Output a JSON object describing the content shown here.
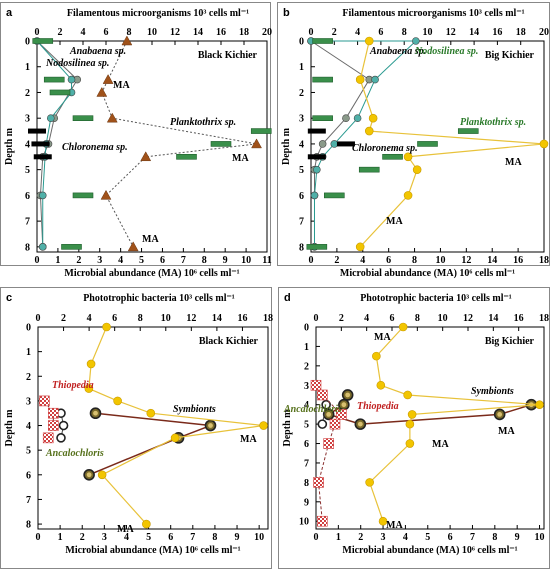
{
  "colors": {
    "filament_bar": "#3a8f4a",
    "filament_bar_edge": "#1f5e2c",
    "black_bar": "#000000",
    "ma_triangle": "#a0521a",
    "ma_dot": "#f2c500",
    "ma_line": "#e8c23a",
    "anab_fill": "#8a9a8a",
    "anab_line": "#6a6a6a",
    "nodo_fill": "#4fb0a8",
    "nodo_line": "#2a9a90",
    "symb_line": "#7a2a1a",
    "symb_fill": "#7a6a2a",
    "anca_fill": "#ffffff",
    "anca_edge": "#55701a",
    "thio_fill": "#f2b6b6",
    "thio_edge": "#d04040",
    "green_text": "#2a7a2a",
    "red_text": "#c02020"
  },
  "panels": [
    {
      "letter": "a",
      "header": "Filamentous microorganisms 10³ cells ml⁻¹",
      "lake": "Black Kichier",
      "top_ticks": [
        "0",
        "2",
        "4",
        "6",
        "8",
        "10",
        "12",
        "14",
        "16",
        "18",
        "20"
      ],
      "bottom_ticks": [
        "0",
        "1",
        "2",
        "3",
        "4",
        "5",
        "6",
        "7",
        "8",
        "9",
        "10",
        "11"
      ],
      "bottom_label": "Microbial abundance (MA) 10⁶ cells ml⁻¹",
      "y_ticks": [
        "0",
        "1",
        "2",
        "3",
        "4",
        "5",
        "6",
        "7",
        "8"
      ],
      "y_label": "Depth m",
      "labels": {
        "anabaena": "Anabaena sp.",
        "nodosilinea": "Nodosilinea sp.",
        "planktothrix": "Planktothrix sp.",
        "chloronema": "Chloronema sp.",
        "ma1": "MA",
        "ma2": "MA",
        "ma3": "MA"
      }
    },
    {
      "letter": "b",
      "header": "Filamentous microorganisms 10³ cells ml⁻¹",
      "lake": "Big Kichier",
      "top_ticks": [
        "0",
        "2",
        "4",
        "6",
        "8",
        "10",
        "12",
        "14",
        "16",
        "18",
        "20"
      ],
      "bottom_ticks": [
        "0",
        "2",
        "4",
        "6",
        "8",
        "10",
        "12",
        "14",
        "16",
        "18"
      ],
      "bottom_label": "Microbial abundance (MA) 10⁶ cells ml⁻¹",
      "y_ticks": [
        "0",
        "1",
        "2",
        "3",
        "4",
        "5",
        "6",
        "7",
        "8"
      ],
      "y_label": "Depth m",
      "labels": {
        "anabaena": "Anabaena sp.",
        "nodosilinea": "Nodosilinea sp.",
        "planktothrix": "Planktothrix sp.",
        "chloronema": "Chloronema sp.",
        "ma1": "MA",
        "ma2": "MA"
      }
    },
    {
      "letter": "c",
      "header": "Phototrophic bacteria 10³ cells ml⁻¹",
      "lake": "Black Kichier",
      "top_ticks": [
        "0",
        "2",
        "4",
        "6",
        "8",
        "10",
        "12",
        "14",
        "16",
        "18"
      ],
      "bottom_ticks": [
        "0",
        "1",
        "2",
        "3",
        "4",
        "5",
        "6",
        "7",
        "8",
        "9",
        "10"
      ],
      "bottom_label": "Microbial abundance (MA) 10⁶ cells ml⁻¹",
      "y_ticks": [
        "0",
        "1",
        "2",
        "3",
        "4",
        "5",
        "6",
        "7",
        "8"
      ],
      "y_label": "Depth m",
      "labels": {
        "thiopedia": "Thiopedia",
        "symbionts": "Symbionts",
        "ancalochloris": "Ancalochloris",
        "ma1": "MA",
        "ma2": "MA"
      }
    },
    {
      "letter": "d",
      "header": "Phototrophic bacteria 10³ cells ml⁻¹",
      "lake": "Big Kichier",
      "top_ticks": [
        "0",
        "2",
        "4",
        "6",
        "8",
        "10",
        "12",
        "14",
        "16",
        "18"
      ],
      "bottom_ticks": [
        "0",
        "1",
        "2",
        "3",
        "4",
        "5",
        "6",
        "7",
        "8",
        "9",
        "10"
      ],
      "bottom_label": "Microbial abundance (MA) 10⁶ cells ml⁻¹",
      "y_ticks": [
        "0",
        "1",
        "2",
        "3",
        "4",
        "5",
        "6",
        "7",
        "8",
        "9",
        "10"
      ],
      "y_label": "Depth m",
      "labels": {
        "thiopedia": "Thiopedia",
        "symbionts": "Symbionts",
        "ancalochloris": "Ancalochloris",
        "ma1": "MA",
        "ma2": "MA",
        "ma3": "MA"
      }
    }
  ],
  "chart_data": [
    {
      "panel": "a",
      "type": "line",
      "ylim": [
        0,
        8.2
      ],
      "top_xlim": [
        0,
        20
      ],
      "bottom_xlim": [
        0,
        11
      ],
      "series": [
        {
          "name": "Anabaena sp.",
          "axis": "top",
          "marker": "circle",
          "points": [
            [
              0,
              0
            ],
            [
              3.5,
              1.5
            ],
            [
              1.5,
              3
            ],
            [
              1,
              4
            ],
            [
              0.5,
              4.5
            ],
            [
              0.3,
              6
            ],
            [
              0.5,
              8
            ]
          ]
        },
        {
          "name": "Nodosilinea sp.",
          "axis": "top",
          "marker": "circle",
          "points": [
            [
              0,
              0
            ],
            [
              3,
              1.5
            ],
            [
              3,
              2
            ],
            [
              1.2,
              3
            ],
            [
              0.8,
              4
            ],
            [
              0.7,
              4.5
            ],
            [
              0.5,
              6
            ],
            [
              0.5,
              8
            ]
          ]
        },
        {
          "name": "Planktothrix sp.",
          "axis": "top",
          "marker": "bar",
          "points": [
            [
              0.5,
              0
            ],
            [
              1.5,
              1.5
            ],
            [
              2,
              2
            ],
            [
              4,
              3
            ],
            [
              19.5,
              3.5
            ],
            [
              16,
              4
            ],
            [
              13,
              4.5
            ],
            [
              4,
              6
            ],
            [
              3,
              8
            ]
          ]
        },
        {
          "name": "Chloronema sp.",
          "axis": "top",
          "marker": "blackbar",
          "points": [
            [
              0,
              3.5
            ],
            [
              0.3,
              4
            ],
            [
              0.5,
              4.5
            ]
          ]
        },
        {
          "name": "MA",
          "axis": "bottom",
          "marker": "triangle",
          "points": [
            [
              4.3,
              0
            ],
            [
              3.4,
              1.5
            ],
            [
              3.1,
              2
            ],
            [
              3.6,
              3
            ],
            [
              10.5,
              4
            ],
            [
              5.2,
              4.5
            ],
            [
              3.3,
              6
            ],
            [
              4.6,
              8
            ]
          ]
        }
      ]
    },
    {
      "panel": "b",
      "type": "line",
      "ylim": [
        0,
        8.2
      ],
      "top_xlim": [
        0,
        20
      ],
      "bottom_xlim": [
        0,
        18
      ],
      "series": [
        {
          "name": "Anabaena sp.",
          "axis": "top",
          "marker": "circle",
          "points": [
            [
              0,
              0
            ],
            [
              5,
              1.5
            ],
            [
              3,
              3
            ],
            [
              1,
              4
            ],
            [
              0.5,
              4.5
            ],
            [
              0.3,
              5
            ],
            [
              0.3,
              6
            ],
            [
              0.3,
              8
            ]
          ]
        },
        {
          "name": "Nodosilinea sp.",
          "axis": "top",
          "marker": "circle",
          "points": [
            [
              0,
              0
            ],
            [
              9,
              0
            ],
            [
              5.5,
              1.5
            ],
            [
              4,
              3
            ],
            [
              2,
              4
            ],
            [
              1,
              4.5
            ],
            [
              0.5,
              5
            ],
            [
              0.3,
              6
            ],
            [
              0.3,
              8
            ]
          ]
        },
        {
          "name": "Planktothrix sp.",
          "axis": "top",
          "marker": "bar",
          "points": [
            [
              1,
              0
            ],
            [
              1,
              1.5
            ],
            [
              1,
              3
            ],
            [
              13.5,
              3.5
            ],
            [
              10,
              4
            ],
            [
              7,
              4.5
            ],
            [
              5,
              5
            ],
            [
              2,
              6
            ],
            [
              0.5,
              8
            ]
          ]
        },
        {
          "name": "Chloronema sp.",
          "axis": "top",
          "marker": "blackbar",
          "points": [
            [
              0.5,
              3.5
            ],
            [
              3,
              4
            ],
            [
              0.5,
              4.5
            ]
          ]
        },
        {
          "name": "MA",
          "axis": "bottom",
          "marker": "dot",
          "points": [
            [
              4.5,
              0
            ],
            [
              3.8,
              1.5
            ],
            [
              4.8,
              3
            ],
            [
              4.5,
              3.5
            ],
            [
              18,
              4
            ],
            [
              7.5,
              4.5
            ],
            [
              8.2,
              5
            ],
            [
              7.5,
              6
            ],
            [
              3.8,
              8
            ]
          ]
        }
      ]
    },
    {
      "panel": "c",
      "type": "line",
      "ylim": [
        0,
        8.2
      ],
      "top_xlim": [
        0,
        18
      ],
      "bottom_xlim": [
        0,
        10.4
      ],
      "series": [
        {
          "name": "Symbionts",
          "axis": "top",
          "marker": "ring",
          "points": [
            [
              4.5,
              3.5
            ],
            [
              13.5,
              4
            ],
            [
              11,
              4.5
            ],
            [
              4,
              6
            ]
          ]
        },
        {
          "name": "Ancalochloris",
          "axis": "top",
          "marker": "ringhollow",
          "points": [
            [
              1.8,
              3.5
            ],
            [
              2,
              4
            ],
            [
              1.8,
              4.5
            ]
          ]
        },
        {
          "name": "Thiopedia",
          "axis": "top",
          "marker": "checker",
          "points": [
            [
              0.5,
              3
            ],
            [
              1.2,
              3.5
            ],
            [
              1.2,
              4
            ],
            [
              0.8,
              4.5
            ]
          ]
        },
        {
          "name": "MA",
          "axis": "bottom",
          "marker": "dot",
          "points": [
            [
              3.1,
              0
            ],
            [
              2.4,
              1.5
            ],
            [
              2.3,
              2.5
            ],
            [
              3.6,
              3
            ],
            [
              5.1,
              3.5
            ],
            [
              10.2,
              4
            ],
            [
              6.2,
              4.5
            ],
            [
              2.9,
              6
            ],
            [
              4.9,
              8
            ]
          ]
        }
      ]
    },
    {
      "panel": "d",
      "type": "line",
      "ylim": [
        0,
        10.4
      ],
      "top_xlim": [
        0,
        18
      ],
      "bottom_xlim": [
        0,
        10.2
      ],
      "series": [
        {
          "name": "Symbionts",
          "axis": "top",
          "marker": "ring",
          "points": [
            [
              2.5,
              3.5
            ],
            [
              2.2,
              4
            ],
            [
              1,
              4.5
            ],
            [
              3.5,
              5
            ],
            [
              14.5,
              4.5
            ],
            [
              17,
              4
            ]
          ]
        },
        {
          "name": "Ancalochloris",
          "axis": "top",
          "marker": "ringhollow",
          "points": [
            [
              0.8,
              4
            ],
            [
              0.5,
              5
            ]
          ]
        },
        {
          "name": "Thiopedia",
          "axis": "top",
          "marker": "checker",
          "points": [
            [
              0,
              3
            ],
            [
              0.5,
              3.5
            ],
            [
              2,
              4.5
            ],
            [
              1.5,
              5
            ],
            [
              1,
              6
            ],
            [
              0.2,
              8
            ],
            [
              0.5,
              10
            ]
          ]
        },
        {
          "name": "MA",
          "axis": "bottom",
          "marker": "dot",
          "points": [
            [
              3.9,
              0
            ],
            [
              2.7,
              1.5
            ],
            [
              2.9,
              3
            ],
            [
              4.1,
              3.5
            ],
            [
              10,
              4
            ],
            [
              4.3,
              4.5
            ],
            [
              4.2,
              5
            ],
            [
              4.2,
              6
            ],
            [
              2.4,
              8
            ],
            [
              3,
              10
            ]
          ]
        }
      ]
    }
  ]
}
